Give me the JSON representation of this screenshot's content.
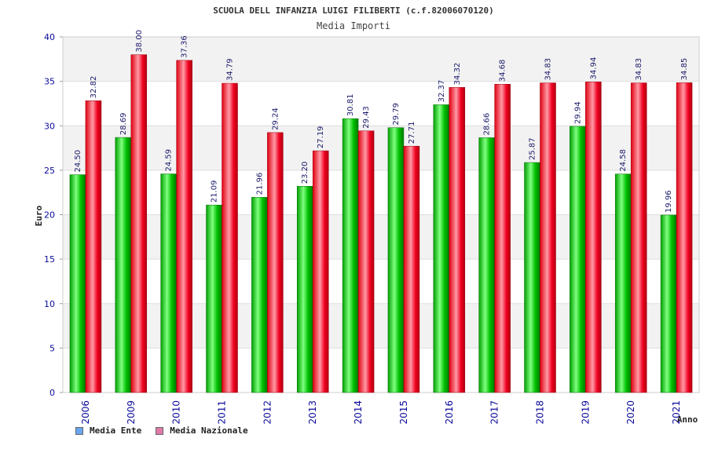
{
  "chart_data": {
    "type": "bar",
    "title": "SCUOLA DELL INFANZIA LUIGI FILIBERTI (c.f.82006070120)",
    "subtitle": "Media Importi",
    "xlabel": "Anno",
    "ylabel": "Euro",
    "ylim": [
      0,
      40
    ],
    "yticks": [
      0,
      5,
      10,
      15,
      20,
      25,
      30,
      35,
      40
    ],
    "categories": [
      "2006",
      "2009",
      "2010",
      "2011",
      "2012",
      "2013",
      "2014",
      "2015",
      "2016",
      "2017",
      "2018",
      "2019",
      "2020",
      "2021"
    ],
    "series": [
      {
        "name": "Media Ente",
        "values": [
          24.5,
          28.69,
          24.59,
          21.09,
          21.96,
          23.2,
          30.81,
          29.79,
          32.37,
          28.66,
          25.87,
          29.94,
          24.58,
          19.96
        ],
        "labels": [
          "24.50",
          "28.69",
          "24.59",
          "21.09",
          "21.96",
          "23.20",
          "30.81",
          "29.79",
          "32.37",
          "28.66",
          "25.87",
          "29.94",
          "24.58",
          "19.96"
        ]
      },
      {
        "name": "Media Nazionale",
        "values": [
          32.82,
          38.0,
          37.36,
          34.79,
          29.24,
          27.19,
          29.43,
          27.71,
          34.32,
          34.68,
          34.83,
          34.94,
          34.83,
          34.85
        ],
        "labels": [
          "32.82",
          "38.00",
          "37.36",
          "34.79",
          "29.24",
          "27.19",
          "29.43",
          "27.71",
          "34.32",
          "34.68",
          "34.83",
          "34.94",
          "34.83",
          "34.85"
        ]
      }
    ],
    "legend_colors": [
      "#6aa6f0",
      "#e07aa8"
    ],
    "grid": true,
    "legend": "bottom-left"
  }
}
